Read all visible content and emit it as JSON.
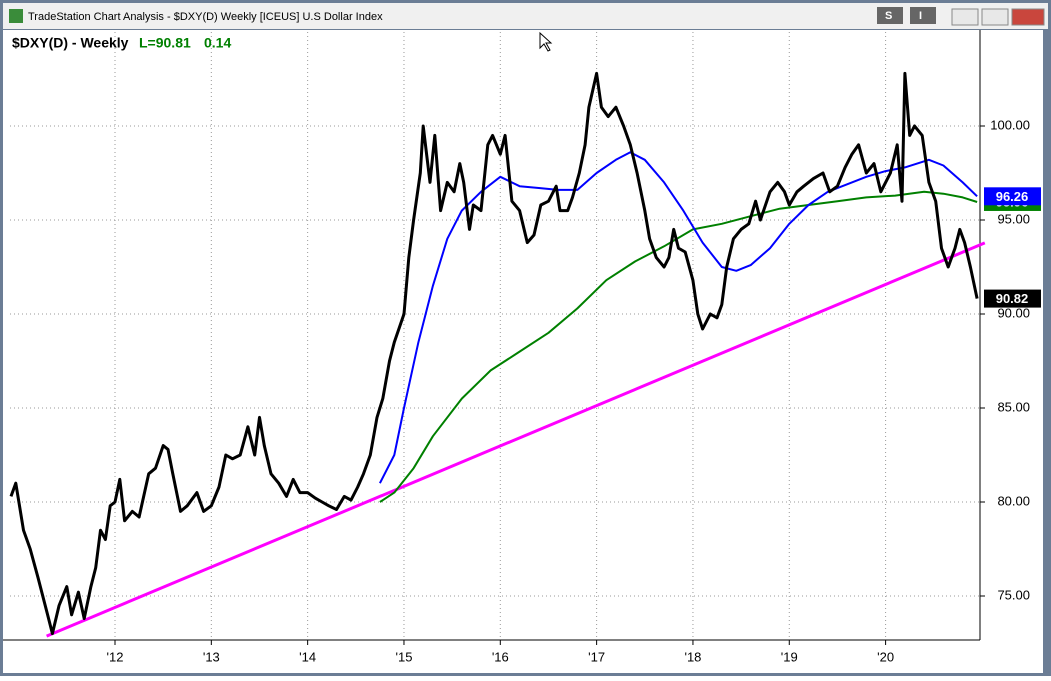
{
  "window_title": "TradeStation Chart Analysis - $DXY(D) Weekly [ICEUS] U.S Dollar Index",
  "buttons": [
    "S",
    "I"
  ],
  "chart_data": {
    "type": "line",
    "title": "$DXY(D) - Weekly",
    "last_text": "L=90.81",
    "change_text": "0.14",
    "xlim": [
      2010.91,
      2020.98
    ],
    "ylim": [
      72.66,
      105.0
    ],
    "xticks": [
      {
        "value": 2012,
        "label": "'12"
      },
      {
        "value": 2013,
        "label": "'13"
      },
      {
        "value": 2014,
        "label": "'14"
      },
      {
        "value": 2015,
        "label": "'15"
      },
      {
        "value": 2016,
        "label": "'16"
      },
      {
        "value": 2017,
        "label": "'17"
      },
      {
        "value": 2018,
        "label": "'18"
      },
      {
        "value": 2019,
        "label": "'19"
      },
      {
        "value": 2020,
        "label": "'20"
      }
    ],
    "yticks": [
      {
        "value": 75,
        "label": "75.00"
      },
      {
        "value": 80,
        "label": "80.00"
      },
      {
        "value": 85,
        "label": "85.00"
      },
      {
        "value": 90,
        "label": "90.00"
      },
      {
        "value": 95,
        "label": "95.00"
      },
      {
        "value": 100,
        "label": "100.00"
      }
    ],
    "grid": true,
    "series": [
      {
        "color": "#ff00ff",
        "width": 3,
        "box": false,
        "x": [
          2011.29,
          2021.03
        ],
        "values": [
          72.87,
          93.78
        ]
      },
      {
        "color": "#008000",
        "width": 2,
        "box": true,
        "x": [
          2014.75,
          2014.9,
          2015.1,
          2015.3,
          2015.6,
          2015.9,
          2016.2,
          2016.5,
          2016.8,
          2017.1,
          2017.4,
          2017.7,
          2018.0,
          2018.3,
          2018.6,
          2018.9,
          2019.2,
          2019.5,
          2019.8,
          2020.1,
          2020.4,
          2020.6,
          2020.8,
          2020.95
        ],
        "values": [
          80.0,
          80.5,
          81.8,
          83.5,
          85.5,
          87.0,
          88.0,
          89.0,
          90.3,
          91.8,
          92.8,
          93.6,
          94.5,
          94.8,
          95.2,
          95.6,
          95.8,
          96.0,
          96.2,
          96.3,
          96.5,
          96.4,
          96.2,
          95.96
        ]
      },
      {
        "color": "#0000ff",
        "width": 2,
        "box": true,
        "x": [
          2014.75,
          2014.9,
          2015.0,
          2015.15,
          2015.3,
          2015.45,
          2015.6,
          2015.8,
          2016.0,
          2016.2,
          2016.4,
          2016.6,
          2016.8,
          2017.0,
          2017.2,
          2017.35,
          2017.5,
          2017.7,
          2017.9,
          2018.1,
          2018.3,
          2018.45,
          2018.6,
          2018.8,
          2019.0,
          2019.2,
          2019.4,
          2019.6,
          2019.8,
          2020.0,
          2020.2,
          2020.45,
          2020.6,
          2020.8,
          2020.95
        ],
        "values": [
          81.0,
          82.5,
          85,
          88.5,
          91.5,
          94,
          95.5,
          96.5,
          97.3,
          96.8,
          96.7,
          96.6,
          96.6,
          97.5,
          98.2,
          98.6,
          98.2,
          97.0,
          95.5,
          93.8,
          92.5,
          92.3,
          92.6,
          93.5,
          94.8,
          95.8,
          96.5,
          96.9,
          97.3,
          97.6,
          97.8,
          98.2,
          97.9,
          97.0,
          96.26
        ]
      },
      {
        "color": "#000000",
        "width": 3,
        "box": true,
        "x": [
          2010.92,
          2010.97,
          2011.05,
          2011.12,
          2011.2,
          2011.3,
          2011.35,
          2011.42,
          2011.5,
          2011.55,
          2011.62,
          2011.68,
          2011.75,
          2011.8,
          2011.85,
          2011.9,
          2011.95,
          2012.0,
          2012.05,
          2012.1,
          2012.18,
          2012.25,
          2012.35,
          2012.42,
          2012.5,
          2012.55,
          2012.6,
          2012.68,
          2012.75,
          2012.85,
          2012.92,
          2013.0,
          2013.08,
          2013.15,
          2013.22,
          2013.3,
          2013.38,
          2013.45,
          2013.5,
          2013.55,
          2013.62,
          2013.7,
          2013.78,
          2013.85,
          2013.92,
          2014.0,
          2014.08,
          2014.15,
          2014.22,
          2014.3,
          2014.38,
          2014.45,
          2014.52,
          2014.58,
          2014.65,
          2014.72,
          2014.78,
          2014.85,
          2014.9,
          2015.0,
          2015.05,
          2015.1,
          2015.17,
          2015.2,
          2015.27,
          2015.32,
          2015.38,
          2015.45,
          2015.52,
          2015.58,
          2015.62,
          2015.68,
          2015.72,
          2015.8,
          2015.87,
          2015.92,
          2016.0,
          2016.05,
          2016.12,
          2016.2,
          2016.28,
          2016.35,
          2016.42,
          2016.5,
          2016.58,
          2016.62,
          2016.7,
          2016.75,
          2016.82,
          2016.88,
          2016.92,
          2017.0,
          2017.05,
          2017.12,
          2017.2,
          2017.28,
          2017.35,
          2017.42,
          2017.5,
          2017.55,
          2017.62,
          2017.7,
          2017.75,
          2017.8,
          2017.85,
          2017.92,
          2018.0,
          2018.05,
          2018.1,
          2018.18,
          2018.25,
          2018.3,
          2018.35,
          2018.42,
          2018.5,
          2018.58,
          2018.65,
          2018.7,
          2018.8,
          2018.88,
          2018.95,
          2019.0,
          2019.08,
          2019.15,
          2019.25,
          2019.35,
          2019.42,
          2019.5,
          2019.58,
          2019.65,
          2019.72,
          2019.8,
          2019.88,
          2019.95,
          2020.05,
          2020.12,
          2020.17,
          2020.2,
          2020.25,
          2020.3,
          2020.38,
          2020.45,
          2020.52,
          2020.58,
          2020.65,
          2020.72,
          2020.77,
          2020.82,
          2020.88,
          2020.95
        ],
        "values": [
          80.3,
          81.0,
          78.5,
          77.5,
          76,
          74.0,
          73.0,
          74.5,
          75.5,
          74.0,
          75.2,
          73.8,
          75.5,
          76.5,
          78.5,
          78.0,
          79.8,
          80.0,
          81.2,
          79.0,
          79.5,
          79.2,
          81.5,
          81.8,
          83.0,
          82.8,
          81.5,
          79.5,
          79.8,
          80.5,
          79.5,
          79.8,
          80.8,
          82.5,
          82.3,
          82.5,
          84.0,
          82.5,
          84.5,
          83.0,
          81.5,
          81.0,
          80.3,
          81.2,
          80.5,
          80.5,
          80.2,
          80.0,
          79.8,
          79.6,
          80.3,
          80.1,
          80.8,
          81.5,
          82.5,
          84.5,
          85.5,
          87.5,
          88.5,
          90.0,
          93.0,
          95.0,
          97.5,
          100.0,
          97.0,
          99.5,
          95.5,
          97.0,
          96.5,
          98.0,
          97.0,
          94.5,
          95.8,
          95.5,
          99.0,
          99.5,
          98.5,
          99.5,
          96.0,
          95.5,
          93.8,
          94.2,
          95.8,
          96.0,
          96.8,
          95.5,
          95.5,
          96.2,
          97.5,
          99.0,
          101.0,
          102.8,
          101.0,
          100.5,
          101.0,
          100.0,
          99.0,
          97.5,
          95.5,
          94.0,
          93.0,
          92.5,
          93.0,
          94.5,
          93.5,
          93.3,
          91.8,
          90.0,
          89.2,
          90.0,
          89.8,
          90.5,
          92.5,
          94.0,
          94.5,
          94.8,
          96.0,
          95.0,
          96.5,
          97.0,
          96.5,
          95.8,
          96.5,
          96.8,
          97.2,
          97.5,
          96.5,
          96.8,
          97.8,
          98.5,
          99.0,
          97.5,
          98.0,
          96.5,
          97.5,
          99.0,
          96.0,
          102.8,
          99.5,
          100.0,
          99.5,
          97.0,
          96.0,
          93.5,
          92.5,
          93.5,
          94.5,
          93.8,
          92.5,
          90.82
        ]
      }
    ]
  }
}
